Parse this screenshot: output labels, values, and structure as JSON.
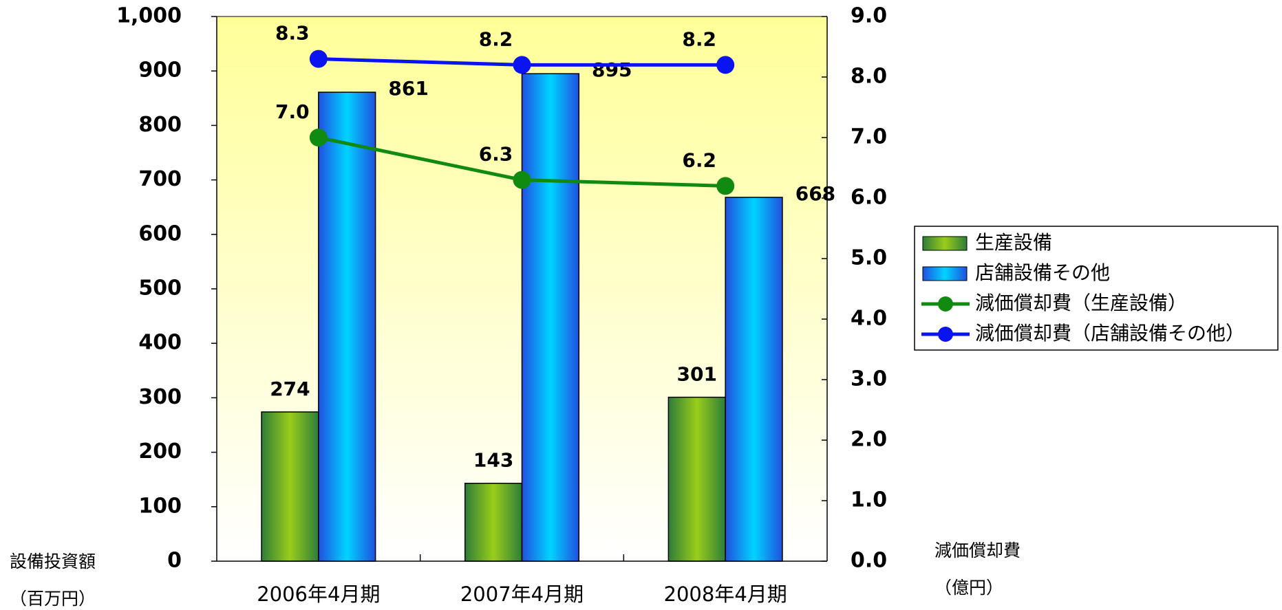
{
  "chart_data": {
    "type": "bar_line",
    "categories": [
      "2006年4月期",
      "2007年4月期",
      "2008年4月期"
    ],
    "series": [
      {
        "name": "生産設備",
        "type": "bar",
        "color": "#9acd1a",
        "values": [
          274,
          143,
          301
        ]
      },
      {
        "name": "店舗設備その他",
        "type": "bar",
        "color": "#00d4ff",
        "values": [
          861,
          895,
          668
        ]
      },
      {
        "name": "減価償却費（生産設備）",
        "type": "line",
        "axis": "y2",
        "color": "#108a10",
        "values": [
          7.0,
          6.3,
          6.2
        ],
        "value_labels": [
          "7.0",
          "6.3",
          "6.2"
        ]
      },
      {
        "name": "減価償却費（店舗設備その他）",
        "type": "line",
        "axis": "y2",
        "color": "#0a14f0",
        "values": [
          8.3,
          8.2,
          8.2
        ],
        "value_labels": [
          "8.3",
          "8.2",
          "8.2"
        ]
      }
    ],
    "ylabel": [
      "設備投資額",
      "（百万円）"
    ],
    "y2label": [
      "減価償却費",
      "（億円）"
    ],
    "ylim": [
      0,
      1000
    ],
    "yticks": [
      0,
      100,
      200,
      300,
      400,
      500,
      600,
      700,
      800,
      900,
      {
        "value": 1000,
        "label": "1,000"
      }
    ],
    "y2lim": [
      0,
      9
    ],
    "y2ticks": [
      {
        "value": 0,
        "label": "0.0"
      },
      {
        "value": 1,
        "label": "1.0"
      },
      {
        "value": 2,
        "label": "2.0"
      },
      {
        "value": 3,
        "label": "3.0"
      },
      {
        "value": 4,
        "label": "4.0"
      },
      {
        "value": 5,
        "label": "5.0"
      },
      {
        "value": 6,
        "label": "6.0"
      },
      {
        "value": 7,
        "label": "7.0"
      },
      {
        "value": 8,
        "label": "8.0"
      },
      {
        "value": 9,
        "label": "9.0"
      }
    ],
    "legend": "right"
  }
}
